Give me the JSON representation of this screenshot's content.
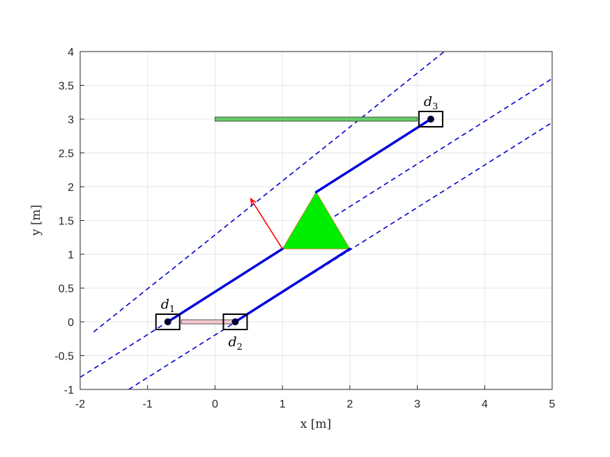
{
  "chart_data": {
    "type": "scatter",
    "xlabel": "x [m]",
    "ylabel": "y [m]",
    "xlim": [
      -2,
      5
    ],
    "ylim": [
      -1,
      4
    ],
    "grid": true,
    "xticks": [
      "-2",
      "-1",
      "0",
      "1",
      "2",
      "3",
      "4",
      "5"
    ],
    "yticks": [
      "-1",
      "-0.5",
      "0",
      "0.5",
      "1",
      "1.5",
      "2",
      "2.5",
      "3",
      "3.5",
      "4"
    ],
    "dashed_lines": [
      {
        "points": [
          [
            -1.8,
            -0.15
          ],
          [
            3.4,
            4.0
          ]
        ]
      },
      {
        "points": [
          [
            -2.0,
            -0.82
          ],
          [
            5.0,
            3.6
          ]
        ]
      },
      {
        "points": [
          [
            -1.28,
            -1.0
          ],
          [
            5.0,
            2.95
          ]
        ]
      }
    ],
    "cables": [
      {
        "points": [
          [
            -0.7,
            0.0
          ],
          [
            1.0,
            1.08
          ]
        ]
      },
      {
        "points": [
          [
            0.3,
            0.0
          ],
          [
            2.0,
            1.08
          ]
        ]
      },
      {
        "points": [
          [
            1.5,
            1.92
          ],
          [
            3.2,
            3.0
          ]
        ]
      }
    ],
    "platform": {
      "vertices": [
        [
          1.0,
          1.08
        ],
        [
          2.0,
          1.08
        ],
        [
          1.5,
          1.92
        ]
      ],
      "color": "#00ee00"
    },
    "force_arrow": {
      "from": [
        1.0,
        1.08
      ],
      "to": [
        0.53,
        1.82
      ],
      "color": "#ff0000"
    },
    "rails": [
      {
        "from": [
          0.0,
          3.0
        ],
        "to": [
          3.0,
          3.0
        ],
        "color": "#66cc66"
      },
      {
        "from": [
          -0.5,
          0.0
        ],
        "to": [
          0.3,
          0.0
        ],
        "color": "#f2c7cf"
      }
    ],
    "drives": [
      {
        "name": "d",
        "sub": "1",
        "x": -0.7,
        "y": 0.0,
        "label_pos": "top"
      },
      {
        "name": "d",
        "sub": "2",
        "x": 0.3,
        "y": 0.0,
        "label_pos": "bottom"
      },
      {
        "name": "d",
        "sub": "3",
        "x": 3.2,
        "y": 3.0,
        "label_pos": "top"
      }
    ],
    "colors": {
      "cable": "#0000dd",
      "dashed": "#0000cc",
      "grid": "#e6e6e6",
      "axis": "#262626"
    }
  }
}
